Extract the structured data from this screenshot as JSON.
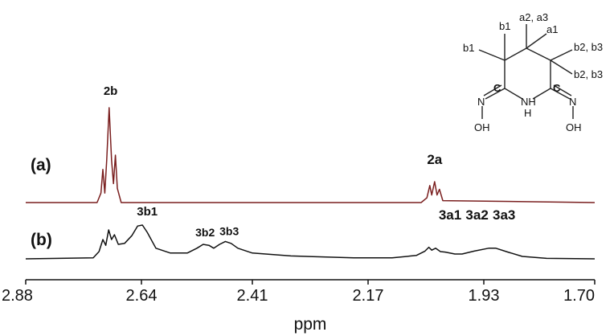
{
  "chart_data": {
    "type": "line",
    "xlabel": "ppm",
    "xlim": [
      2.88,
      1.7
    ],
    "x_reversed": true,
    "ticks": [
      "2.88",
      "2.64",
      "2.41",
      "2.17",
      "1.93",
      "1.70"
    ],
    "tick_values": [
      2.88,
      2.64,
      2.41,
      2.17,
      1.93,
      1.7
    ],
    "grid": false,
    "series": [
      {
        "name": "(a)",
        "color": "#7a1f1f",
        "baseline": 0,
        "points": [
          [
            2.88,
            0
          ],
          [
            2.732,
            0
          ],
          [
            2.724,
            0.1
          ],
          [
            2.72,
            0.35
          ],
          [
            2.716,
            0.1
          ],
          [
            2.712,
            0.45
          ],
          [
            2.707,
            1.0
          ],
          [
            2.702,
            0.45
          ],
          [
            2.698,
            0.2
          ],
          [
            2.694,
            0.5
          ],
          [
            2.69,
            0.15
          ],
          [
            2.682,
            0
          ],
          [
            2.06,
            0
          ],
          [
            2.048,
            0.05
          ],
          [
            2.042,
            0.18
          ],
          [
            2.038,
            0.08
          ],
          [
            2.032,
            0.22
          ],
          [
            2.027,
            0.08
          ],
          [
            2.022,
            0.14
          ],
          [
            2.015,
            0.02
          ],
          [
            1.7,
            0
          ]
        ]
      },
      {
        "name": "(b)",
        "color": "#111111",
        "baseline": 0,
        "points": [
          [
            2.88,
            0
          ],
          [
            2.74,
            0.02
          ],
          [
            2.728,
            0.15
          ],
          [
            2.72,
            0.4
          ],
          [
            2.714,
            0.28
          ],
          [
            2.708,
            0.6
          ],
          [
            2.702,
            0.4
          ],
          [
            2.696,
            0.5
          ],
          [
            2.688,
            0.3
          ],
          [
            2.675,
            0.32
          ],
          [
            2.66,
            0.48
          ],
          [
            2.648,
            0.68
          ],
          [
            2.638,
            0.7
          ],
          [
            2.628,
            0.55
          ],
          [
            2.61,
            0.22
          ],
          [
            2.58,
            0.12
          ],
          [
            2.545,
            0.12
          ],
          [
            2.525,
            0.22
          ],
          [
            2.512,
            0.3
          ],
          [
            2.5,
            0.28
          ],
          [
            2.49,
            0.22
          ],
          [
            2.478,
            0.3
          ],
          [
            2.466,
            0.36
          ],
          [
            2.454,
            0.32
          ],
          [
            2.44,
            0.22
          ],
          [
            2.41,
            0.12
          ],
          [
            2.33,
            0.06
          ],
          [
            2.2,
            0.02
          ],
          [
            2.12,
            0.02
          ],
          [
            2.07,
            0.07
          ],
          [
            2.052,
            0.16
          ],
          [
            2.044,
            0.24
          ],
          [
            2.038,
            0.18
          ],
          [
            2.03,
            0.22
          ],
          [
            2.02,
            0.15
          ],
          [
            2.01,
            0.14
          ],
          [
            1.99,
            0.1
          ],
          [
            1.975,
            0.1
          ],
          [
            1.95,
            0.16
          ],
          [
            1.92,
            0.22
          ],
          [
            1.905,
            0.22
          ],
          [
            1.88,
            0.14
          ],
          [
            1.85,
            0.05
          ],
          [
            1.8,
            0.01
          ],
          [
            1.7,
            0
          ]
        ]
      }
    ],
    "panel_labels": [
      "(a)",
      "(b)"
    ],
    "peak_labels": [
      {
        "text": "2b",
        "x": 2.704,
        "series": "(a)"
      },
      {
        "text": "2a",
        "x": 2.032,
        "series": "(a)"
      },
      {
        "text": "3b1",
        "x": 2.628,
        "series": "(b)"
      },
      {
        "text": "3b2",
        "x": 2.508,
        "series": "(b)"
      },
      {
        "text": "3b3",
        "x": 2.458,
        "series": "(b)"
      },
      {
        "text": "3a1",
        "x": 2.0,
        "series": "(b)"
      },
      {
        "text": "3a2",
        "x": 1.944,
        "series": "(b)"
      },
      {
        "text": "3a3",
        "x": 1.888,
        "series": "(b)"
      }
    ]
  },
  "structure": {
    "labels": [
      "b1",
      "a2, a3",
      "a1",
      "b1",
      "b2, b3",
      "b2, b3",
      "C",
      "C",
      "N",
      "NH",
      "H",
      "N",
      "OH",
      "OH"
    ],
    "bonds_color": "#222222"
  }
}
